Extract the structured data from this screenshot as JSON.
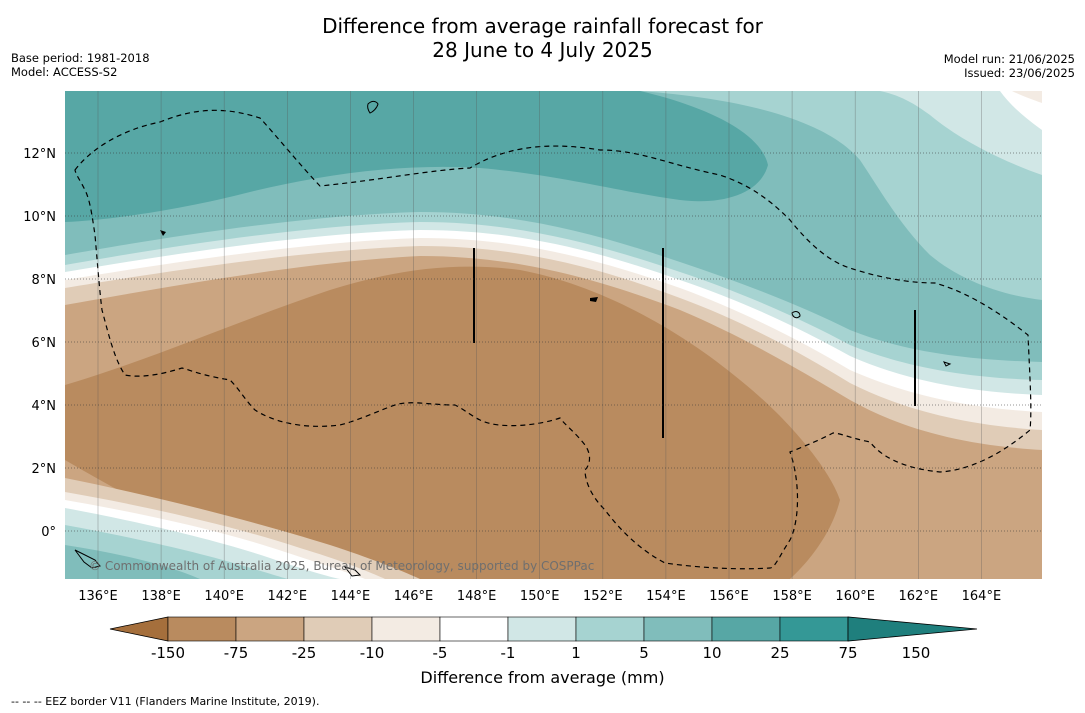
{
  "title": {
    "line1": "Difference from average rainfall forecast for",
    "line2": "28 June to 4 July 2025"
  },
  "meta": {
    "base_period": "Base period: 1981-2018",
    "model": "Model: ACCESS-S2",
    "model_run": "Model run: 21/06/2025",
    "issued": "Issued: 23/06/2025"
  },
  "map": {
    "x_ticks": [
      "136°E",
      "138°E",
      "140°E",
      "142°E",
      "144°E",
      "146°E",
      "148°E",
      "150°E",
      "152°E",
      "154°E",
      "156°E",
      "158°E",
      "160°E",
      "162°E",
      "164°E"
    ],
    "y_ticks": [
      "12°N",
      "10°N",
      "8°N",
      "6°N",
      "4°N",
      "2°N",
      "0°"
    ],
    "copyright": "© Commonwealth of Australia 2025, Bureau of Meteorology, supported by COSPPac"
  },
  "legend": {
    "title": "Difference from average (mm)",
    "labels": [
      "-150",
      "-75",
      "-25",
      "-10",
      "-5",
      "-1",
      "1",
      "5",
      "10",
      "25",
      "75",
      "150"
    ],
    "colors": [
      "#a56f3c",
      "#b98b5f",
      "#cba581",
      "#e0ccb7",
      "#f3ebe3",
      "#ffffff",
      "#d1e7e6",
      "#a6d3d1",
      "#80bdbb",
      "#57a7a5",
      "#349896",
      "#1f7f7d"
    ]
  },
  "footnote": "--  --  -- EEZ border V11 (Flanders Marine Institute, 2019)."
}
